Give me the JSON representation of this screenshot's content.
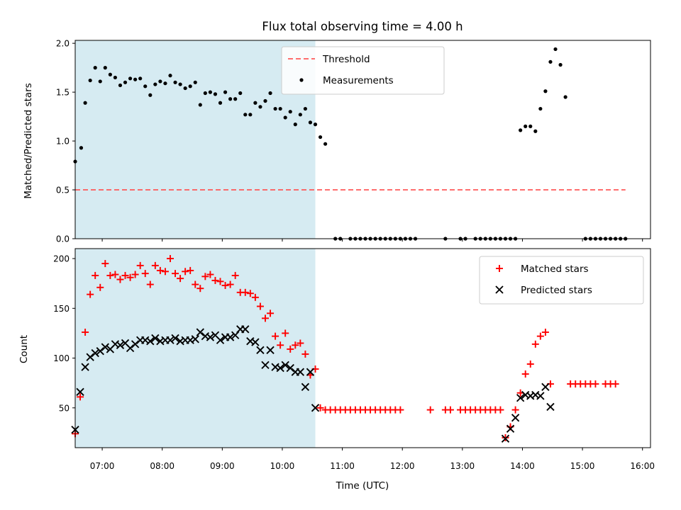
{
  "chart_data": [
    {
      "type": "scatter",
      "title": "Flux total observing time = 4.00 h",
      "xlabel": "",
      "ylabel": "Matched/Predicted stars",
      "xlim": [
        "06:33",
        "16:08"
      ],
      "ylim": [
        0.0,
        2.03
      ],
      "yticks": [
        "0.0",
        "0.5",
        "1.0",
        "1.5",
        "2.0"
      ],
      "legend_position": "upper-center",
      "shaded_span": {
        "start": "06:33",
        "end": "10:33",
        "color": "#add8e6"
      },
      "threshold": {
        "name": "Threshold",
        "y": 0.5,
        "x_start": "06:33",
        "x_end": "15:43",
        "color": "#ff5555",
        "style": "dashed"
      },
      "series": [
        {
          "name": "Measurements",
          "color": "#000000",
          "marker": "dot",
          "points": [
            [
              "06:33",
              0.79
            ],
            [
              "06:39",
              0.93
            ],
            [
              "06:43",
              1.39
            ],
            [
              "06:48",
              1.62
            ],
            [
              "06:53",
              1.75
            ],
            [
              "06:58",
              1.61
            ],
            [
              "07:03",
              1.75
            ],
            [
              "07:08",
              1.68
            ],
            [
              "07:13",
              1.65
            ],
            [
              "07:18",
              1.57
            ],
            [
              "07:23",
              1.6
            ],
            [
              "07:28",
              1.64
            ],
            [
              "07:33",
              1.63
            ],
            [
              "07:38",
              1.64
            ],
            [
              "07:43",
              1.56
            ],
            [
              "07:48",
              1.47
            ],
            [
              "07:53",
              1.58
            ],
            [
              "07:58",
              1.61
            ],
            [
              "08:03",
              1.59
            ],
            [
              "08:08",
              1.67
            ],
            [
              "08:13",
              1.6
            ],
            [
              "08:18",
              1.58
            ],
            [
              "08:23",
              1.54
            ],
            [
              "08:28",
              1.56
            ],
            [
              "08:33",
              1.6
            ],
            [
              "08:38",
              1.37
            ],
            [
              "08:43",
              1.49
            ],
            [
              "08:48",
              1.5
            ],
            [
              "08:53",
              1.48
            ],
            [
              "08:58",
              1.39
            ],
            [
              "09:03",
              1.5
            ],
            [
              "09:08",
              1.43
            ],
            [
              "09:13",
              1.43
            ],
            [
              "09:18",
              1.49
            ],
            [
              "09:23",
              1.27
            ],
            [
              "09:28",
              1.27
            ],
            [
              "09:33",
              1.39
            ],
            [
              "09:38",
              1.35
            ],
            [
              "09:43",
              1.41
            ],
            [
              "09:48",
              1.49
            ],
            [
              "09:53",
              1.33
            ],
            [
              "09:58",
              1.33
            ],
            [
              "10:03",
              1.24
            ],
            [
              "10:08",
              1.3
            ],
            [
              "10:13",
              1.17
            ],
            [
              "10:18",
              1.27
            ],
            [
              "10:23",
              1.33
            ],
            [
              "10:28",
              1.19
            ],
            [
              "10:33",
              1.17
            ],
            [
              "10:38",
              1.04
            ],
            [
              "10:43",
              0.97
            ],
            [
              "10:53",
              0.0
            ],
            [
              "10:58",
              0.0
            ],
            [
              "11:08",
              0.0
            ],
            [
              "11:13",
              0.0
            ],
            [
              "11:18",
              0.0
            ],
            [
              "11:23",
              0.0
            ],
            [
              "11:28",
              0.0
            ],
            [
              "11:33",
              0.0
            ],
            [
              "11:38",
              0.0
            ],
            [
              "11:43",
              0.0
            ],
            [
              "11:48",
              0.0
            ],
            [
              "11:53",
              0.0
            ],
            [
              "11:58",
              0.0
            ],
            [
              "12:03",
              0.0
            ],
            [
              "12:08",
              0.0
            ],
            [
              "12:13",
              0.0
            ],
            [
              "12:43",
              0.0
            ],
            [
              "12:58",
              0.0
            ],
            [
              "13:03",
              0.0
            ],
            [
              "13:13",
              0.0
            ],
            [
              "13:18",
              0.0
            ],
            [
              "13:23",
              0.0
            ],
            [
              "13:28",
              0.0
            ],
            [
              "13:33",
              0.0
            ],
            [
              "13:38",
              0.0
            ],
            [
              "13:43",
              0.0
            ],
            [
              "13:48",
              0.0
            ],
            [
              "13:53",
              0.0
            ],
            [
              "13:58",
              1.11
            ],
            [
              "14:03",
              1.15
            ],
            [
              "14:08",
              1.15
            ],
            [
              "14:13",
              1.1
            ],
            [
              "14:18",
              1.33
            ],
            [
              "14:23",
              1.51
            ],
            [
              "14:28",
              1.81
            ],
            [
              "14:33",
              1.94
            ],
            [
              "14:38",
              1.78
            ],
            [
              "14:43",
              1.45
            ],
            [
              "15:03",
              0.0
            ],
            [
              "15:08",
              0.0
            ],
            [
              "15:13",
              0.0
            ],
            [
              "15:18",
              0.0
            ],
            [
              "15:23",
              0.0
            ],
            [
              "15:28",
              0.0
            ],
            [
              "15:33",
              0.0
            ],
            [
              "15:38",
              0.0
            ],
            [
              "15:43",
              0.0
            ]
          ]
        }
      ]
    },
    {
      "type": "scatter",
      "title": "",
      "xlabel": "Time (UTC)",
      "ylabel": "Count",
      "xlim": [
        "06:33",
        "16:08"
      ],
      "ylim": [
        10,
        210
      ],
      "yticks": [
        "50",
        "100",
        "150",
        "200"
      ],
      "xticks": [
        "07:00",
        "08:00",
        "09:00",
        "10:00",
        "11:00",
        "12:00",
        "13:00",
        "14:00",
        "15:00",
        "16:00"
      ],
      "legend_position": "top-right",
      "shaded_span": {
        "start": "06:33",
        "end": "10:33",
        "color": "#add8e6"
      },
      "series": [
        {
          "name": "Matched stars",
          "color": "#ff0000",
          "marker": "plus",
          "points": [
            [
              "06:33",
              24
            ],
            [
              "06:38",
              61
            ],
            [
              "06:43",
              126
            ],
            [
              "06:48",
              164
            ],
            [
              "06:53",
              183
            ],
            [
              "06:58",
              171
            ],
            [
              "07:03",
              195
            ],
            [
              "07:08",
              183
            ],
            [
              "07:13",
              184
            ],
            [
              "07:18",
              179
            ],
            [
              "07:23",
              183
            ],
            [
              "07:28",
              181
            ],
            [
              "07:33",
              184
            ],
            [
              "07:38",
              193
            ],
            [
              "07:43",
              185
            ],
            [
              "07:48",
              174
            ],
            [
              "07:53",
              193
            ],
            [
              "07:58",
              188
            ],
            [
              "08:03",
              187
            ],
            [
              "08:08",
              200
            ],
            [
              "08:13",
              185
            ],
            [
              "08:18",
              180
            ],
            [
              "08:23",
              187
            ],
            [
              "08:28",
              188
            ],
            [
              "08:33",
              174
            ],
            [
              "08:38",
              170
            ],
            [
              "08:43",
              182
            ],
            [
              "08:48",
              184
            ],
            [
              "08:53",
              178
            ],
            [
              "08:58",
              177
            ],
            [
              "09:03",
              173
            ],
            [
              "09:08",
              174
            ],
            [
              "09:13",
              183
            ],
            [
              "09:18",
              166
            ],
            [
              "09:23",
              166
            ],
            [
              "09:28",
              165
            ],
            [
              "09:33",
              161
            ],
            [
              "09:38",
              152
            ],
            [
              "09:43",
              140
            ],
            [
              "09:48",
              145
            ],
            [
              "09:53",
              122
            ],
            [
              "09:58",
              113
            ],
            [
              "10:03",
              125
            ],
            [
              "10:08",
              109
            ],
            [
              "10:13",
              113
            ],
            [
              "10:18",
              115
            ],
            [
              "10:23",
              104
            ],
            [
              "10:28",
              83
            ],
            [
              "10:33",
              89
            ],
            [
              "10:38",
              50
            ],
            [
              "10:43",
              48
            ],
            [
              "10:48",
              48
            ],
            [
              "10:53",
              48
            ],
            [
              "10:58",
              48
            ],
            [
              "11:03",
              48
            ],
            [
              "11:08",
              48
            ],
            [
              "11:13",
              48
            ],
            [
              "11:18",
              48
            ],
            [
              "11:23",
              48
            ],
            [
              "11:28",
              48
            ],
            [
              "11:33",
              48
            ],
            [
              "11:38",
              48
            ],
            [
              "11:43",
              48
            ],
            [
              "11:48",
              48
            ],
            [
              "11:53",
              48
            ],
            [
              "11:58",
              48
            ],
            [
              "12:28",
              48
            ],
            [
              "12:43",
              48
            ],
            [
              "12:48",
              48
            ],
            [
              "12:58",
              48
            ],
            [
              "13:03",
              48
            ],
            [
              "13:08",
              48
            ],
            [
              "13:13",
              48
            ],
            [
              "13:18",
              48
            ],
            [
              "13:23",
              48
            ],
            [
              "13:28",
              48
            ],
            [
              "13:33",
              48
            ],
            [
              "13:38",
              48
            ],
            [
              "13:43",
              20
            ],
            [
              "13:48",
              31
            ],
            [
              "13:53",
              48
            ],
            [
              "13:58",
              65
            ],
            [
              "14:03",
              84
            ],
            [
              "14:08",
              94
            ],
            [
              "14:13",
              114
            ],
            [
              "14:18",
              122
            ],
            [
              "14:23",
              126
            ],
            [
              "14:28",
              74
            ],
            [
              "14:48",
              74
            ],
            [
              "14:53",
              74
            ],
            [
              "14:58",
              74
            ],
            [
              "15:03",
              74
            ],
            [
              "15:08",
              74
            ],
            [
              "15:13",
              74
            ],
            [
              "15:23",
              74
            ],
            [
              "15:28",
              74
            ],
            [
              "15:33",
              74
            ]
          ]
        },
        {
          "name": "Predicted stars",
          "color": "#000000",
          "marker": "x",
          "points": [
            [
              "06:33",
              28
            ],
            [
              "06:38",
              66
            ],
            [
              "06:43",
              91
            ],
            [
              "06:48",
              101
            ],
            [
              "06:53",
              105
            ],
            [
              "06:58",
              107
            ],
            [
              "07:03",
              111
            ],
            [
              "07:08",
              109
            ],
            [
              "07:13",
              114
            ],
            [
              "07:18",
              113
            ],
            [
              "07:23",
              115
            ],
            [
              "07:28",
              110
            ],
            [
              "07:33",
              114
            ],
            [
              "07:38",
              118
            ],
            [
              "07:43",
              118
            ],
            [
              "07:48",
              117
            ],
            [
              "07:53",
              120
            ],
            [
              "07:58",
              117
            ],
            [
              "08:03",
              118
            ],
            [
              "08:08",
              118
            ],
            [
              "08:13",
              120
            ],
            [
              "08:18",
              117
            ],
            [
              "08:23",
              118
            ],
            [
              "08:28",
              118
            ],
            [
              "08:33",
              119
            ],
            [
              "08:38",
              126
            ],
            [
              "08:43",
              122
            ],
            [
              "08:48",
              121
            ],
            [
              "08:53",
              123
            ],
            [
              "08:58",
              118
            ],
            [
              "09:03",
              121
            ],
            [
              "09:08",
              121
            ],
            [
              "09:13",
              123
            ],
            [
              "09:18",
              129
            ],
            [
              "09:23",
              129
            ],
            [
              "09:28",
              117
            ],
            [
              "09:33",
              116
            ],
            [
              "09:38",
              108
            ],
            [
              "09:43",
              93
            ],
            [
              "09:48",
              108
            ],
            [
              "09:53",
              91
            ],
            [
              "09:58",
              90
            ],
            [
              "10:03",
              93
            ],
            [
              "10:08",
              90
            ],
            [
              "10:13",
              86
            ],
            [
              "10:18",
              86
            ],
            [
              "10:23",
              71
            ],
            [
              "10:28",
              86
            ],
            [
              "10:33",
              50
            ],
            [
              "13:43",
              19
            ],
            [
              "13:48",
              29
            ],
            [
              "13:53",
              40
            ],
            [
              "13:58",
              60
            ],
            [
              "14:03",
              63
            ],
            [
              "14:08",
              62
            ],
            [
              "14:13",
              63
            ],
            [
              "14:18",
              62
            ],
            [
              "14:23",
              71
            ],
            [
              "14:28",
              51
            ]
          ]
        }
      ]
    }
  ]
}
